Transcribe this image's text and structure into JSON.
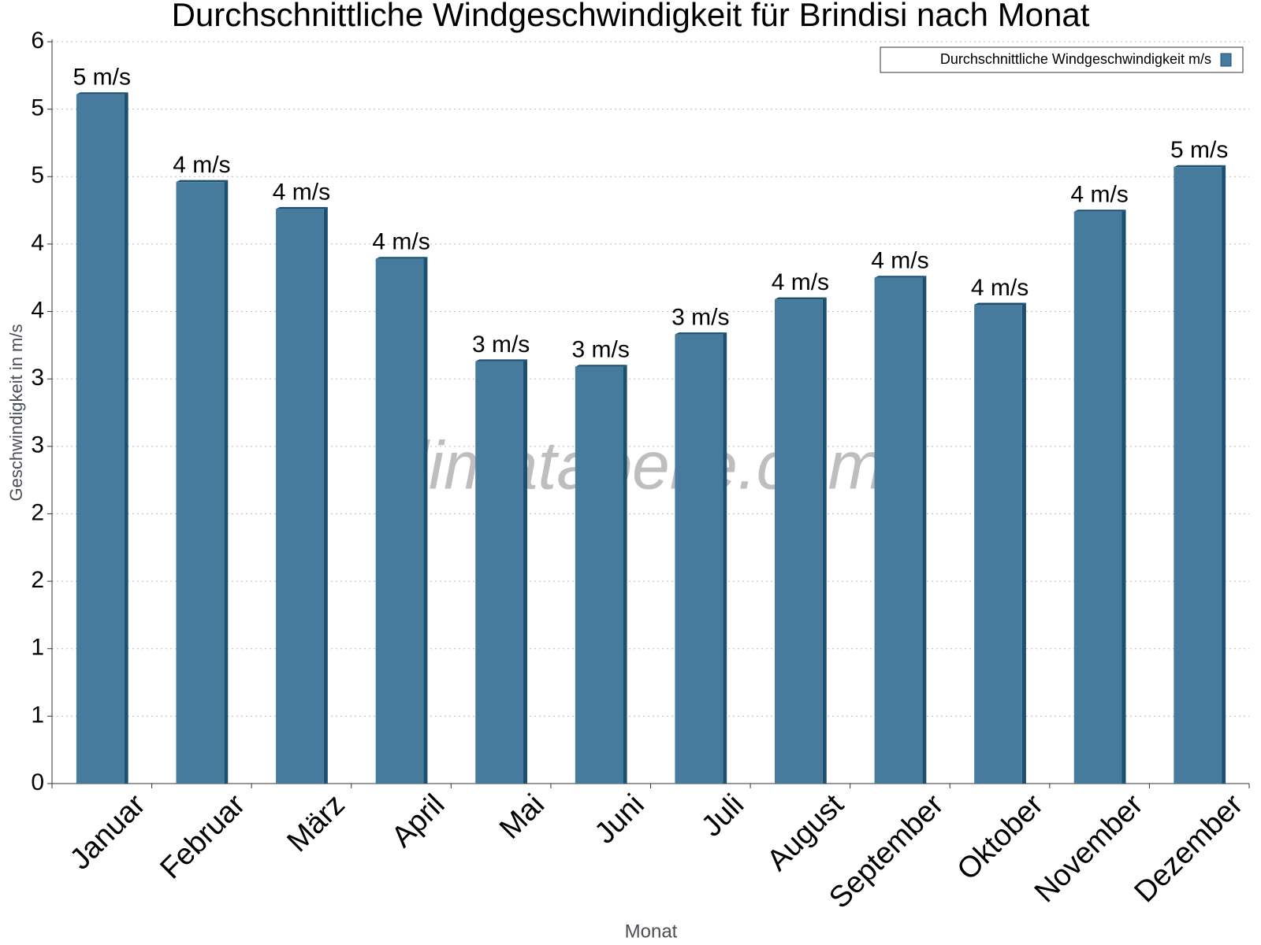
{
  "chart_data": {
    "type": "bar",
    "title": "Durchschnittliche Windgeschwindigkeit für Brindisi nach Monat",
    "x_label": "Monat",
    "y_label": "Geschwindigkeit in m/s",
    "watermark": "klimatabelle.com",
    "categories": [
      "Januar",
      "Februar",
      "März",
      "April",
      "Mai",
      "Juni",
      "Juli",
      "August",
      "September",
      "Oktober",
      "November",
      "Dezember"
    ],
    "series": [
      {
        "name": "Durchschnittliche Windgeschwindigkeit m/s",
        "color": "#467b9d",
        "values": [
          5.11,
          4.46,
          4.26,
          3.89,
          3.13,
          3.09,
          3.33,
          3.59,
          3.75,
          3.55,
          4.24,
          4.57
        ],
        "value_labels": [
          "5 m/s",
          "4 m/s",
          "4 m/s",
          "4 m/s",
          "3 m/s",
          "3 m/s",
          "3 m/s",
          "4 m/s",
          "4 m/s",
          "4 m/s",
          "4 m/s",
          "5 m/s"
        ]
      }
    ],
    "ylim": [
      0,
      5.5
    ],
    "yticks": [
      0,
      {
        "value": 0.5,
        "label": "1"
      },
      1,
      {
        "value": 1.5,
        "label": "2"
      },
      2,
      {
        "value": 2.5,
        "label": "3"
      },
      3,
      {
        "value": 3.5,
        "label": "4"
      },
      4,
      {
        "value": 4.5,
        "label": "5"
      },
      5,
      {
        "value": 5.5,
        "label": "6"
      }
    ],
    "grid": true,
    "legend": "top-right"
  }
}
